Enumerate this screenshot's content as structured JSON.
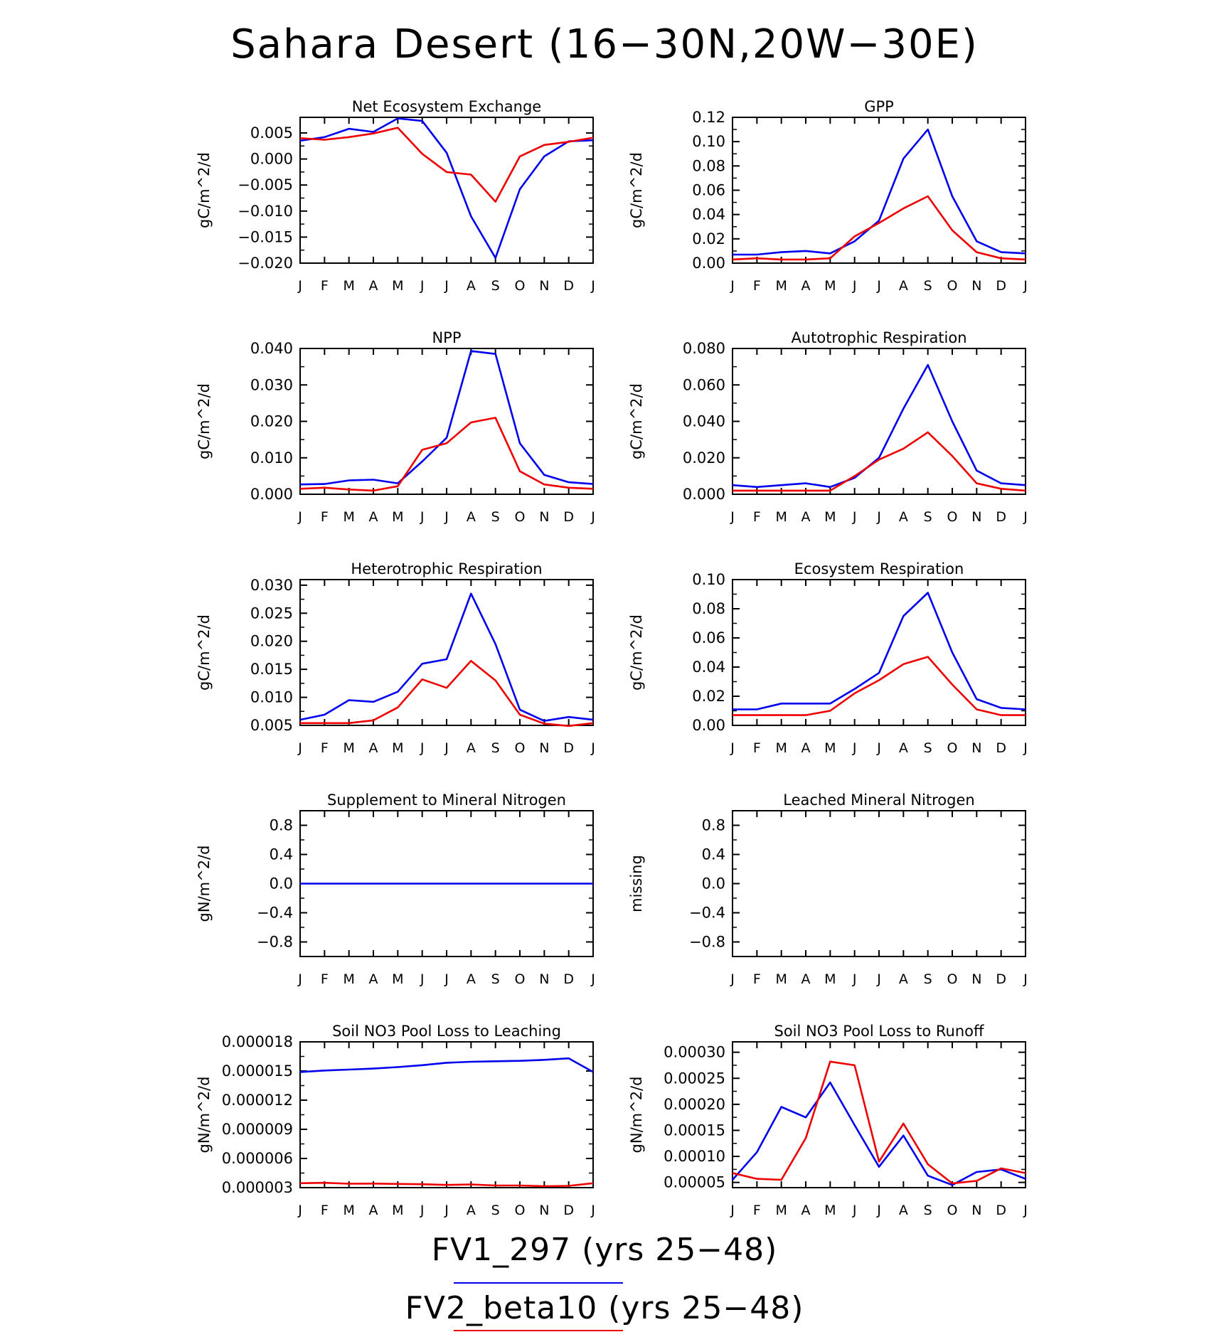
{
  "title": "Sahara Desert (16−30N,20W−30E)",
  "months": [
    "J",
    "F",
    "M",
    "A",
    "M",
    "J",
    "J",
    "A",
    "S",
    "O",
    "N",
    "D",
    "J"
  ],
  "legend": [
    {
      "name": "FV1_297 (yrs 25−48)",
      "color": "#0000ee"
    },
    {
      "name": "FV2_beta10 (yrs 25−48)",
      "color": "#ee0000"
    }
  ],
  "chart_data": [
    {
      "type": "line",
      "title": "Net Ecosystem Exchange",
      "ylabel": "gC/m^2/d",
      "ylim": [
        -0.02,
        0.008
      ],
      "yticks": [
        -0.02,
        -0.015,
        -0.01,
        -0.005,
        0.0,
        0.005
      ],
      "yticklabels": [
        "−0.020",
        "−0.015",
        "−0.010",
        "−0.005",
        "0.000",
        "0.005"
      ],
      "series": [
        {
          "values": [
            0.0035,
            0.0042,
            0.0058,
            0.0052,
            0.0078,
            0.0073,
            0.0012,
            -0.011,
            -0.019,
            -0.0058,
            0.0005,
            0.0034,
            0.0036
          ]
        },
        {
          "values": [
            0.004,
            0.0037,
            0.0042,
            0.0049,
            0.006,
            0.001,
            -0.0025,
            -0.003,
            -0.0082,
            0.0005,
            0.0027,
            0.0033,
            0.0041
          ]
        }
      ]
    },
    {
      "type": "line",
      "title": "GPP",
      "ylabel": "gC/m^2/d",
      "ylim": [
        0,
        0.12
      ],
      "yticks": [
        0,
        0.02,
        0.04,
        0.06,
        0.08,
        0.1,
        0.12
      ],
      "yticklabels": [
        "0.00",
        "0.02",
        "0.04",
        "0.06",
        "0.08",
        "0.10",
        "0.12"
      ],
      "series": [
        {
          "values": [
            0.007,
            0.007,
            0.009,
            0.01,
            0.008,
            0.018,
            0.035,
            0.086,
            0.11,
            0.055,
            0.018,
            0.009,
            0.008
          ]
        },
        {
          "values": [
            0.003,
            0.004,
            0.003,
            0.003,
            0.004,
            0.022,
            0.033,
            0.045,
            0.055,
            0.027,
            0.009,
            0.004,
            0.003
          ]
        }
      ]
    },
    {
      "type": "line",
      "title": "NPP",
      "ylabel": "gC/m^2/d",
      "ylim": [
        0,
        0.04
      ],
      "yticks": [
        0,
        0.01,
        0.02,
        0.03,
        0.04
      ],
      "yticklabels": [
        "0.000",
        "0.010",
        "0.020",
        "0.030",
        "0.040"
      ],
      "series": [
        {
          "values": [
            0.0027,
            0.0028,
            0.0038,
            0.004,
            0.003,
            0.009,
            0.0155,
            0.0393,
            0.0385,
            0.014,
            0.0053,
            0.0033,
            0.0028
          ]
        },
        {
          "values": [
            0.0015,
            0.0018,
            0.0013,
            0.001,
            0.0022,
            0.0122,
            0.014,
            0.0197,
            0.021,
            0.0063,
            0.0027,
            0.0018,
            0.0015
          ]
        }
      ]
    },
    {
      "type": "line",
      "title": "Autotrophic Respiration",
      "ylabel": "gC/m^2/d",
      "ylim": [
        0,
        0.08
      ],
      "yticks": [
        0,
        0.02,
        0.04,
        0.06,
        0.08
      ],
      "yticklabels": [
        "0.000",
        "0.020",
        "0.040",
        "0.060",
        "0.080"
      ],
      "series": [
        {
          "values": [
            0.005,
            0.004,
            0.005,
            0.006,
            0.004,
            0.009,
            0.02,
            0.047,
            0.071,
            0.04,
            0.013,
            0.006,
            0.005
          ]
        },
        {
          "values": [
            0.002,
            0.002,
            0.002,
            0.002,
            0.002,
            0.01,
            0.019,
            0.025,
            0.034,
            0.021,
            0.006,
            0.003,
            0.002
          ]
        }
      ]
    },
    {
      "type": "line",
      "title": "Heterotrophic Respiration",
      "ylabel": "gC/m^2/d",
      "ylim": [
        0.005,
        0.031
      ],
      "yticks": [
        0.005,
        0.01,
        0.015,
        0.02,
        0.025,
        0.03
      ],
      "yticklabels": [
        "0.005",
        "0.010",
        "0.015",
        "0.020",
        "0.025",
        "0.030"
      ],
      "series": [
        {
          "values": [
            0.006,
            0.0069,
            0.0095,
            0.0092,
            0.011,
            0.016,
            0.0168,
            0.0285,
            0.0195,
            0.0078,
            0.0058,
            0.0065,
            0.006
          ]
        },
        {
          "values": [
            0.0054,
            0.0054,
            0.0054,
            0.0059,
            0.0082,
            0.0132,
            0.0117,
            0.0165,
            0.013,
            0.0069,
            0.0053,
            0.0049,
            0.0054
          ]
        }
      ]
    },
    {
      "type": "line",
      "title": "Ecosystem Respiration",
      "ylabel": "gC/m^2/d",
      "ylim": [
        0,
        0.1
      ],
      "yticks": [
        0,
        0.02,
        0.04,
        0.06,
        0.08,
        0.1
      ],
      "yticklabels": [
        "0.00",
        "0.02",
        "0.04",
        "0.06",
        "0.08",
        "0.10"
      ],
      "series": [
        {
          "values": [
            0.011,
            0.011,
            0.015,
            0.015,
            0.015,
            0.025,
            0.036,
            0.075,
            0.091,
            0.05,
            0.018,
            0.012,
            0.011
          ]
        },
        {
          "values": [
            0.007,
            0.007,
            0.007,
            0.007,
            0.01,
            0.022,
            0.031,
            0.042,
            0.047,
            0.028,
            0.011,
            0.007,
            0.007
          ]
        }
      ]
    },
    {
      "type": "line",
      "title": "Supplement to Mineral Nitrogen",
      "ylabel": "gN/m^2/d",
      "ylim": [
        -1,
        1
      ],
      "yticks": [
        -0.8,
        -0.4,
        0.0,
        0.4,
        0.8
      ],
      "yticklabels": [
        "−0.8",
        "−0.4",
        "0.0",
        "0.4",
        "0.8"
      ],
      "series": [
        {
          "values": [
            0,
            0,
            0,
            0,
            0,
            0,
            0,
            0,
            0,
            0,
            0,
            0,
            0
          ]
        }
      ]
    },
    {
      "type": "line",
      "title": "Leached Mineral Nitrogen",
      "ylabel": "missing",
      "ylim": [
        -1,
        1
      ],
      "yticks": [
        -0.8,
        -0.4,
        0.0,
        0.4,
        0.8
      ],
      "yticklabels": [
        "−0.8",
        "−0.4",
        "0.0",
        "0.4",
        "0.8"
      ],
      "series": []
    },
    {
      "type": "line",
      "title": "Soil NO3 Pool Loss to Leaching",
      "ylabel": "gN/m^2/d",
      "ylim": [
        3e-06,
        1.8e-05
      ],
      "yticks": [
        3e-06,
        6e-06,
        9e-06,
        1.2e-05,
        1.5e-05,
        1.8e-05
      ],
      "yticklabels": [
        "0.000003",
        "0.000006",
        "0.000009",
        "0.000012",
        "0.000015",
        "0.000018"
      ],
      "series": [
        {
          "values": [
            1.49e-05,
            1.505e-05,
            1.515e-05,
            1.525e-05,
            1.54e-05,
            1.56e-05,
            1.585e-05,
            1.595e-05,
            1.6e-05,
            1.605e-05,
            1.615e-05,
            1.63e-05,
            1.49e-05
          ]
        },
        {
          "values": [
            3.45e-06,
            3.5e-06,
            3.4e-06,
            3.42e-06,
            3.38e-06,
            3.35e-06,
            3.28e-06,
            3.33e-06,
            3.22e-06,
            3.22e-06,
            3.15e-06,
            3.18e-06,
            3.45e-06
          ]
        }
      ]
    },
    {
      "type": "line",
      "title": "Soil NO3 Pool Loss to Runoff",
      "ylabel": "gN/m^2/d",
      "ylim": [
        4e-05,
        0.00032
      ],
      "yticks": [
        5e-05,
        0.0001,
        0.00015,
        0.0002,
        0.00025,
        0.0003
      ],
      "yticklabels": [
        "0.00005",
        "0.00010",
        "0.00015",
        "0.00020",
        "0.00025",
        "0.00030"
      ],
      "series": [
        {
          "values": [
            5.5e-05,
            0.000108,
            0.000195,
            0.000175,
            0.000242,
            0.00016,
            8e-05,
            0.00014,
            6.3e-05,
            4.5e-05,
            7e-05,
            7.5e-05,
            5.7e-05
          ]
        },
        {
          "values": [
            6.8e-05,
            5.7e-05,
            5.5e-05,
            0.000135,
            0.000282,
            0.000275,
            9e-05,
            0.000163,
            8.5e-05,
            4.8e-05,
            5.3e-05,
            7.7e-05,
            6.8e-05
          ]
        }
      ]
    }
  ]
}
